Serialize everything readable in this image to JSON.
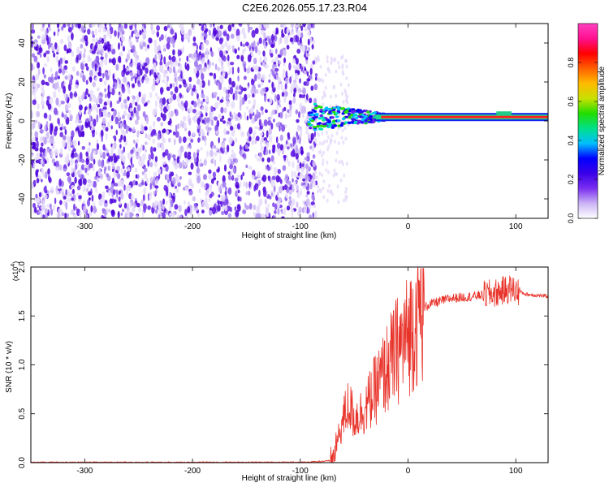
{
  "title": "C2E6.2026.055.17.23.R04",
  "chart_data": [
    {
      "type": "heatmap",
      "name": "spectrogram",
      "xlabel": "Height of straight line (km)",
      "ylabel": "Frequency (Hz)",
      "xlim": [
        -350,
        130
      ],
      "ylim": [
        -50,
        50
      ],
      "x_ticks": [
        -300,
        -200,
        -100,
        0,
        100
      ],
      "y_ticks": [
        -40,
        -20,
        0,
        20,
        40
      ],
      "noise_region_end_km": -85,
      "signal_band": {
        "start_km": -90,
        "center_hz": 2,
        "description": "narrow carrier line near 0-2 Hz, amplitude rising from ~0.3 to ~1.0"
      },
      "colorbar": {
        "label": "Normalized spectral amplitude",
        "range": [
          0.0,
          1.0
        ],
        "ticks": [
          "0.0",
          "0.2",
          "0.4",
          "0.6",
          "0.8"
        ],
        "tick_values": [
          0.0,
          0.2,
          0.4,
          0.6,
          0.8
        ],
        "colors": [
          "#ffffff",
          "#cbb3f5",
          "#7a2ff0",
          "#3a00e8",
          "#0000ff",
          "#00bfff",
          "#00e08a",
          "#22dd00",
          "#c8e000",
          "#ffbb00",
          "#ff6000",
          "#ff0000",
          "#ff1090",
          "#ff40c0"
        ]
      }
    },
    {
      "type": "line",
      "name": "snr",
      "xlabel": "Height of straight line (km)",
      "ylabel": "SNR (10 * v/v)",
      "scale_label": "(x10",
      "scale_exponent": "4",
      "xlim": [
        -350,
        130
      ],
      "ylim": [
        0,
        2.0
      ],
      "x_ticks": [
        -300,
        -200,
        -100,
        0,
        100
      ],
      "y_ticks": [
        "0.0",
        "0.5",
        "1.0",
        "1.5",
        "2.0"
      ],
      "y_tick_values": [
        0.0,
        0.5,
        1.0,
        1.5,
        2.0
      ],
      "color": "#e8332a",
      "series": [
        {
          "name": "SNR envelope",
          "x": [
            -350,
            -100,
            -70,
            -60,
            -55,
            -50,
            -40,
            -30,
            -20,
            -10,
            0,
            10,
            20,
            40,
            60,
            80,
            95,
            110,
            130
          ],
          "y": [
            0.0,
            0.0,
            0.02,
            0.45,
            0.6,
            0.45,
            0.55,
            0.75,
            0.95,
            1.15,
            1.3,
            1.55,
            1.62,
            1.68,
            1.7,
            1.73,
            1.78,
            1.72,
            1.7
          ]
        }
      ]
    }
  ]
}
